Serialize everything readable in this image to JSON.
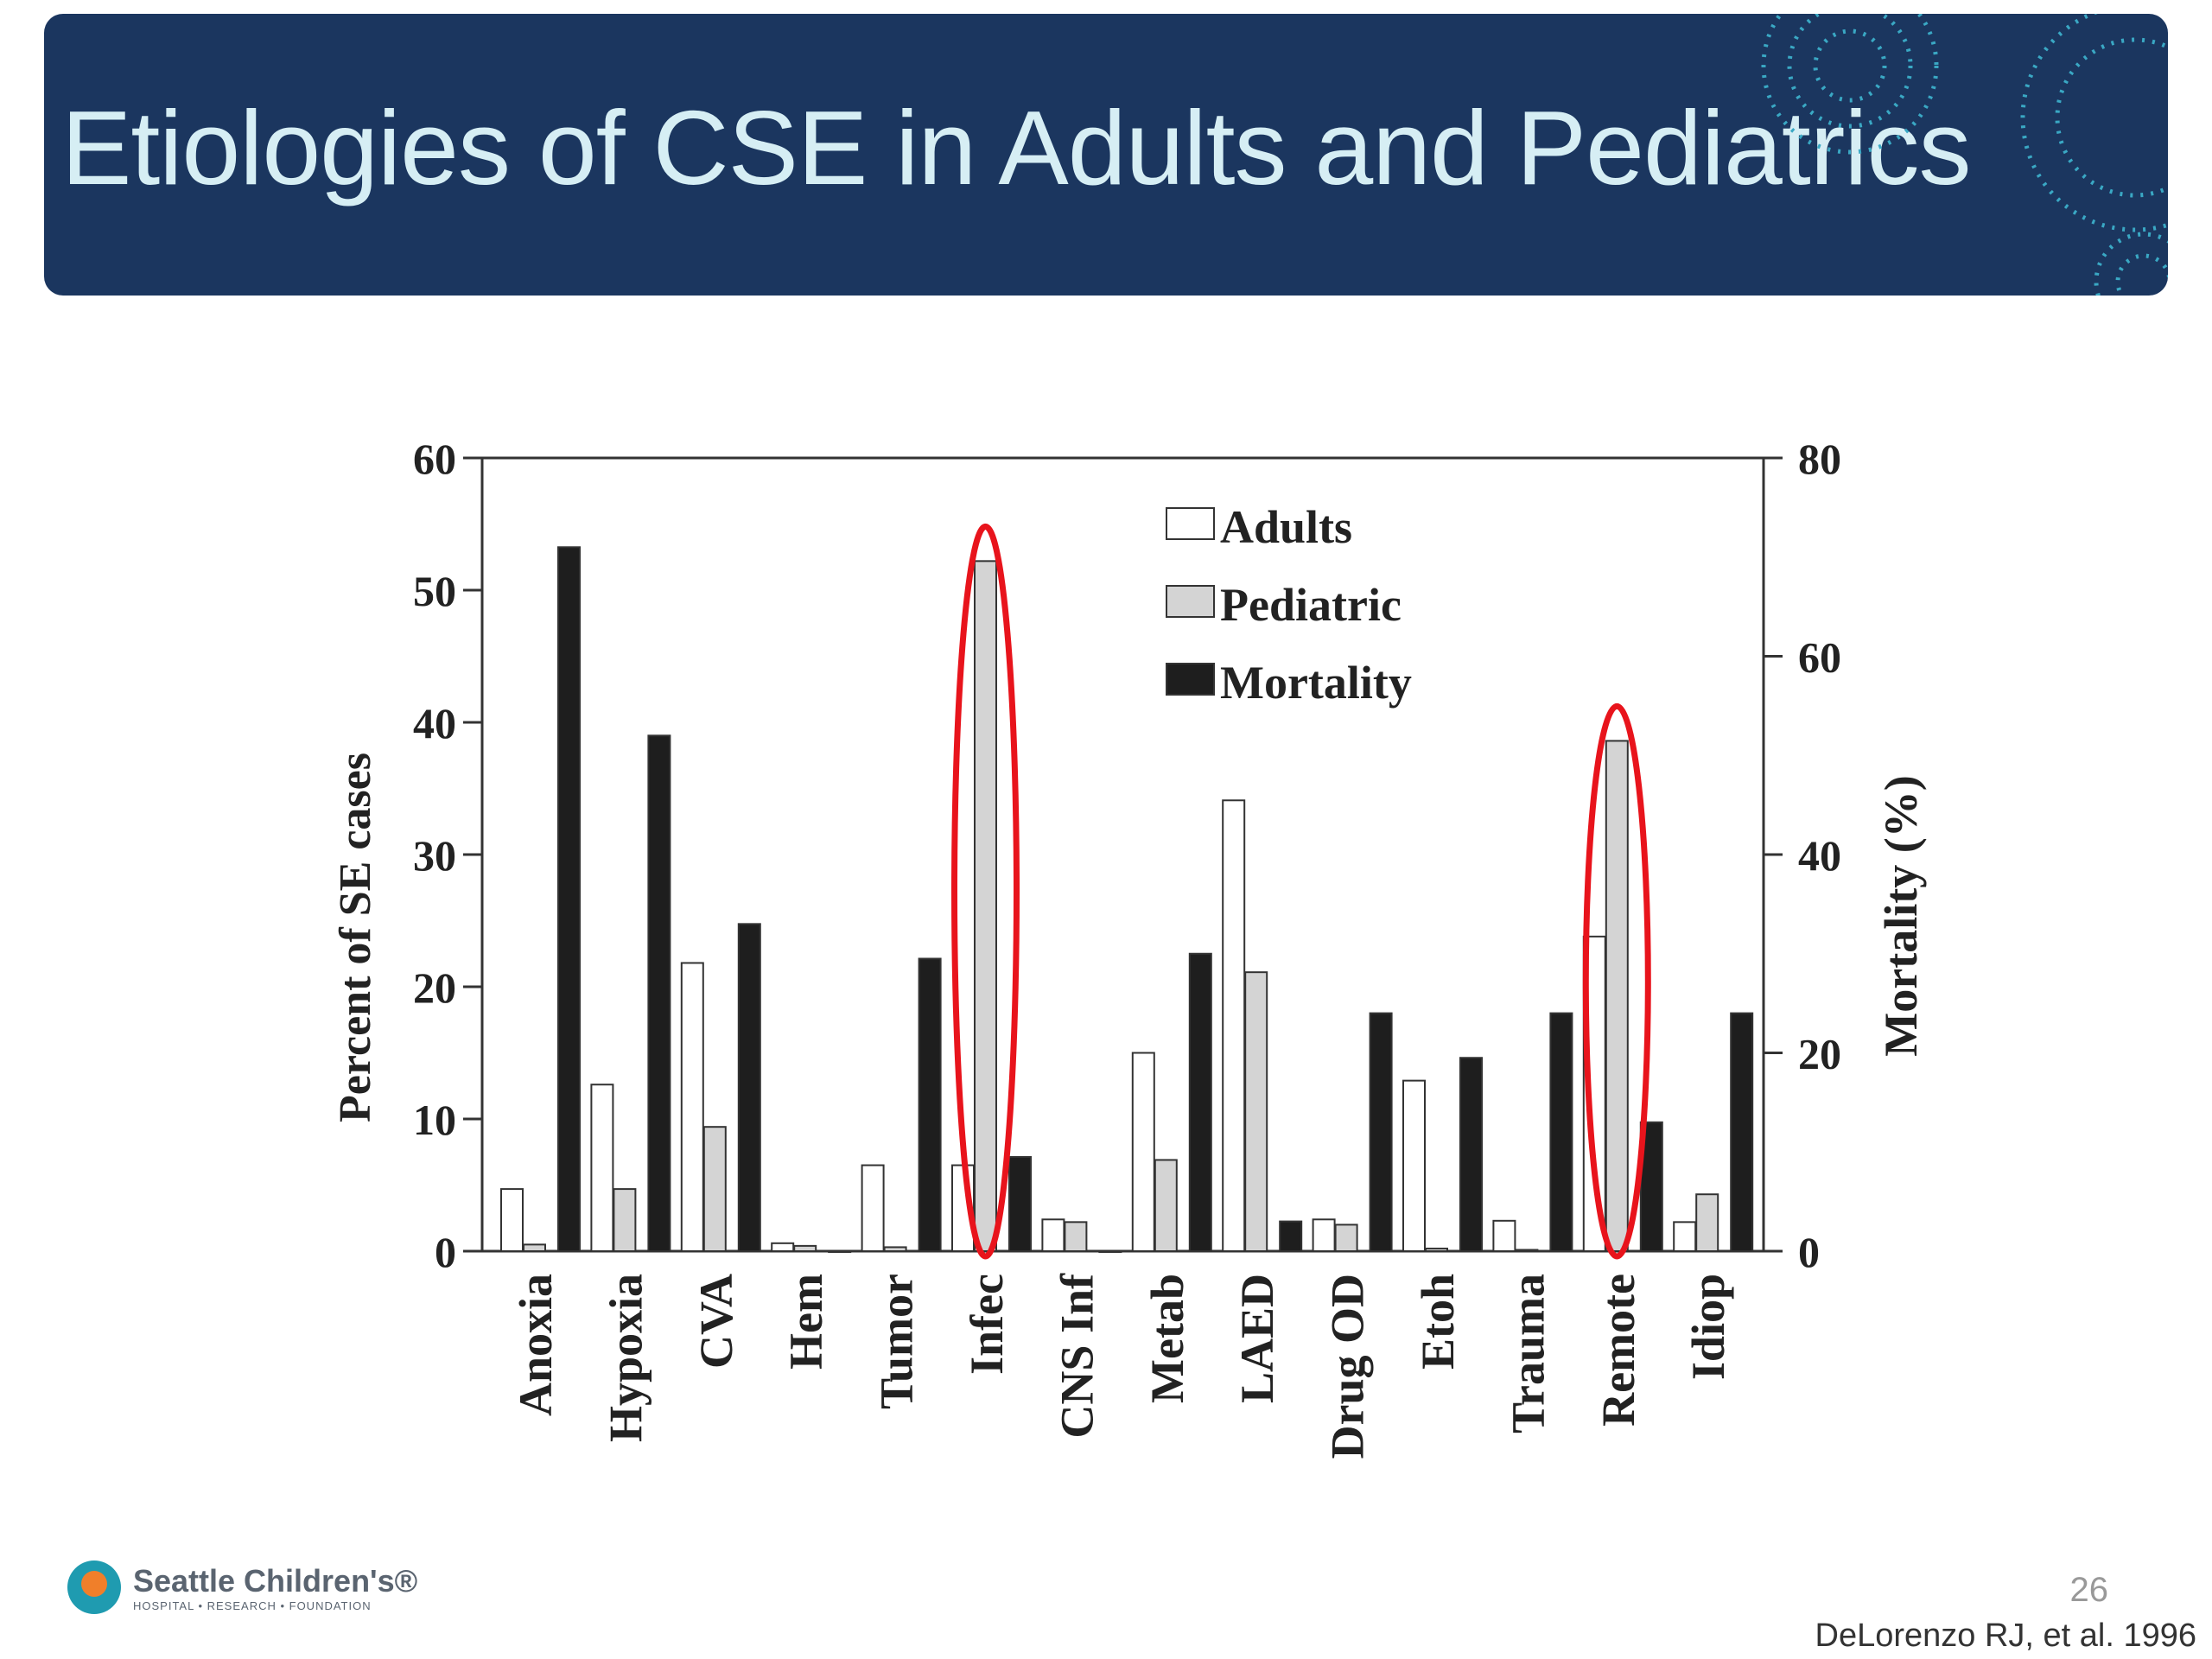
{
  "slide": {
    "title": "Etiologies of CSE in Adults and Pediatrics",
    "page_number": "26",
    "citation": "DeLorenzo RJ, et al. 1996",
    "logo": {
      "name": "Seattle Children's®",
      "subtitle": "HOSPITAL • RESEARCH • FOUNDATION"
    },
    "colors": {
      "banner": "#1b365f",
      "title": "#d6eef4",
      "highlight": "#e8141c"
    }
  },
  "chart_data": {
    "type": "bar",
    "title": "",
    "xlabel": "",
    "ylabel": "Percent of SE cases",
    "y2label": "Mortality (%)",
    "ylim": [
      0,
      60
    ],
    "y2lim": [
      0,
      80
    ],
    "yticks": [
      "0",
      "10",
      "20",
      "30",
      "40",
      "50",
      "60"
    ],
    "y2ticks": [
      "0",
      "20",
      "40",
      "60",
      "80"
    ],
    "legend_position": "top-center",
    "categories": [
      "Anoxia",
      "Hypoxia",
      "CVA",
      "Hem",
      "Tumor",
      "Infec",
      "CNS Inf",
      "Metab",
      "LAED",
      "Drug OD",
      "Etoh",
      "Trauma",
      "Remote",
      "Idiop"
    ],
    "series": [
      {
        "name": "Adults",
        "axis": "left",
        "color": "#ffffff",
        "values": [
          4.7,
          12.6,
          21.8,
          0.6,
          6.5,
          6.5,
          2.4,
          15.0,
          34.1,
          2.4,
          12.9,
          2.3,
          23.8,
          2.2
        ]
      },
      {
        "name": "Pediatric",
        "axis": "left",
        "color": "#d4d4d4",
        "values": [
          0.5,
          4.7,
          9.4,
          0.4,
          0.3,
          52.2,
          2.2,
          6.9,
          21.1,
          2.0,
          0.2,
          0.1,
          38.6,
          4.3
        ]
      },
      {
        "name": "Mortality",
        "axis": "right",
        "color": "#1e1e1e",
        "values": [
          71,
          52,
          33,
          0,
          29.5,
          9.5,
          0,
          30,
          3,
          24,
          19.5,
          24,
          13,
          24
        ]
      }
    ],
    "annotations": [
      {
        "type": "red-ellipse",
        "category": "Infec",
        "series": "Pediatric"
      },
      {
        "type": "red-ellipse",
        "category": "Remote",
        "series": "Pediatric"
      }
    ]
  }
}
